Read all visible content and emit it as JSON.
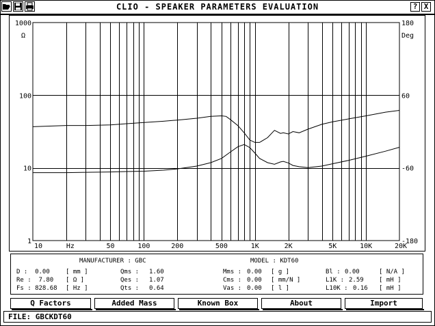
{
  "window": {
    "title": "CLIO - SPEAKER PARAMETERS EVALUATION",
    "help_label": "?",
    "close_label": "X"
  },
  "toolbar": {
    "icons": [
      "folder-open-icon",
      "floppy-disk-icon",
      "printer-icon"
    ]
  },
  "chart_data": {
    "type": "line",
    "x_scale": "log",
    "xlim": [
      10,
      20000
    ],
    "x_tick_labels": [
      {
        "value": 10,
        "label": "10"
      },
      {
        "value": 50,
        "label": "50"
      },
      {
        "value": 100,
        "label": "100"
      },
      {
        "value": 200,
        "label": "200"
      },
      {
        "value": 500,
        "label": "500"
      },
      {
        "value": 1000,
        "label": "1K"
      },
      {
        "value": 2000,
        "label": "2K"
      },
      {
        "value": 5000,
        "label": "5K"
      },
      {
        "value": 10000,
        "label": "10K"
      },
      {
        "value": 20000,
        "label": "20K"
      }
    ],
    "x_unit_label": "Hz",
    "y_left": {
      "scale": "log",
      "range": [
        1,
        1000
      ],
      "unit": "Ω",
      "ticks": [
        {
          "value": 1,
          "label": "1"
        },
        {
          "value": 10,
          "label": "10"
        },
        {
          "value": 100,
          "label": "100"
        },
        {
          "value": 1000,
          "label": "1000"
        }
      ]
    },
    "y_right": {
      "scale": "linear",
      "range": [
        -180,
        180
      ],
      "unit": "Deg",
      "ticks": [
        {
          "value": 180,
          "label": "180"
        },
        {
          "value": 60,
          "label": "60"
        },
        {
          "value": -60,
          "label": "-60"
        },
        {
          "value": -180,
          "label": "-180"
        }
      ]
    },
    "grid": true,
    "series": [
      {
        "axis": "left",
        "x": [
          10,
          20,
          30,
          50,
          70,
          100,
          150,
          200,
          300,
          400,
          500,
          600,
          700,
          800,
          900,
          1000,
          1100,
          1300,
          1500,
          1700,
          1800,
          2000,
          2200,
          2500,
          3000,
          4000,
          5000,
          7000,
          10000,
          15000,
          20000
        ],
        "y": [
          8.6,
          8.6,
          8.7,
          8.8,
          8.9,
          9.0,
          9.3,
          9.7,
          10.6,
          11.8,
          13.5,
          16.5,
          19.5,
          21.0,
          19.0,
          16.0,
          13.5,
          11.8,
          11.2,
          12.1,
          12.3,
          11.7,
          10.8,
          10.4,
          10.1,
          10.6,
          11.4,
          12.7,
          14.5,
          17.0,
          19.2
        ]
      },
      {
        "axis": "right",
        "x": [
          10,
          20,
          30,
          50,
          70,
          100,
          150,
          200,
          300,
          400,
          500,
          550,
          600,
          700,
          800,
          900,
          1000,
          1100,
          1300,
          1500,
          1700,
          1800,
          2000,
          2200,
          2500,
          3000,
          4000,
          5000,
          7000,
          10000,
          15000,
          20000
        ],
        "y": [
          8,
          10,
          10,
          11,
          13,
          15,
          17,
          19,
          22,
          25,
          26,
          25,
          20,
          10,
          -2,
          -14,
          -18,
          -18,
          -10,
          2,
          -3,
          -2,
          -4,
          0,
          -2,
          4,
          12,
          16,
          21,
          26,
          32,
          35
        ]
      }
    ]
  },
  "params": {
    "manufacturer_label": "MANUFACTURER : GBC",
    "model_label": "MODEL : KDT60",
    "rows": [
      [
        "D :  0.00",
        "[ mm ]",
        "Qms :",
        "1.60",
        "Mms :",
        "0.00",
        "[ g ]",
        "Bl :",
        "0.00",
        "[ N/A ]"
      ],
      [
        "Re :  7.80",
        "[ Ω ]",
        "Qes :",
        "1.07",
        "Cms :",
        "0.00",
        "[ mm/N ]",
        "L1K :",
        "2.59",
        "[ mH ]"
      ],
      [
        "Fs : 828.68",
        "[ Hz ]",
        "Qts :",
        "0.64",
        "Vas :",
        "0.00",
        "[ l ]",
        "L10K :",
        "0.16",
        "[ mH ]"
      ]
    ]
  },
  "buttons": {
    "q_factors": "Q Factors",
    "added_mass": "Added Mass",
    "known_box": "Known Box",
    "about": "About",
    "import": "Import"
  },
  "status": {
    "file_label": "FILE:",
    "file_name": "GBCKDT60"
  }
}
